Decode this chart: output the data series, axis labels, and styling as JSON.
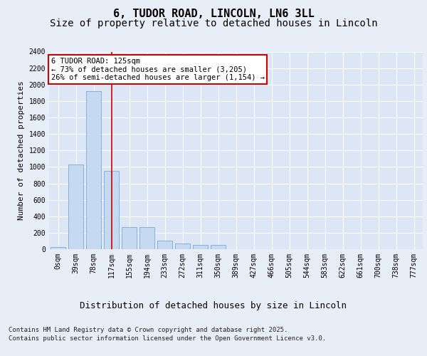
{
  "title": "6, TUDOR ROAD, LINCOLN, LN6 3LL",
  "subtitle": "Size of property relative to detached houses in Lincoln",
  "xlabel": "Distribution of detached houses by size in Lincoln",
  "ylabel": "Number of detached properties",
  "bar_color": "#c5d9f1",
  "bar_edge_color": "#7ba7d4",
  "vline_color": "#cc0000",
  "vline_x_index": 3,
  "annotation_box_color": "#cc0000",
  "annotation_lines": [
    "6 TUDOR ROAD: 125sqm",
    "← 73% of detached houses are smaller (3,205)",
    "26% of semi-detached houses are larger (1,154) →"
  ],
  "categories": [
    "0sqm",
    "39sqm",
    "78sqm",
    "117sqm",
    "155sqm",
    "194sqm",
    "233sqm",
    "272sqm",
    "311sqm",
    "350sqm",
    "389sqm",
    "427sqm",
    "466sqm",
    "505sqm",
    "544sqm",
    "583sqm",
    "622sqm",
    "661sqm",
    "700sqm",
    "738sqm",
    "777sqm"
  ],
  "values": [
    30,
    1030,
    1920,
    950,
    270,
    270,
    100,
    70,
    55,
    50,
    0,
    0,
    0,
    0,
    0,
    0,
    0,
    0,
    0,
    0,
    0
  ],
  "ylim": [
    0,
    2400
  ],
  "yticks": [
    0,
    200,
    400,
    600,
    800,
    1000,
    1200,
    1400,
    1600,
    1800,
    2000,
    2200,
    2400
  ],
  "background_color": "#e8eef7",
  "plot_bg_color": "#dce6f4",
  "grid_color": "#ffffff",
  "footer_lines": [
    "Contains HM Land Registry data © Crown copyright and database right 2025.",
    "Contains public sector information licensed under the Open Government Licence v3.0."
  ],
  "title_fontsize": 11,
  "subtitle_fontsize": 10,
  "ylabel_fontsize": 8,
  "xlabel_fontsize": 9,
  "tick_fontsize": 7,
  "annotation_fontsize": 7.5,
  "footer_fontsize": 6.5
}
